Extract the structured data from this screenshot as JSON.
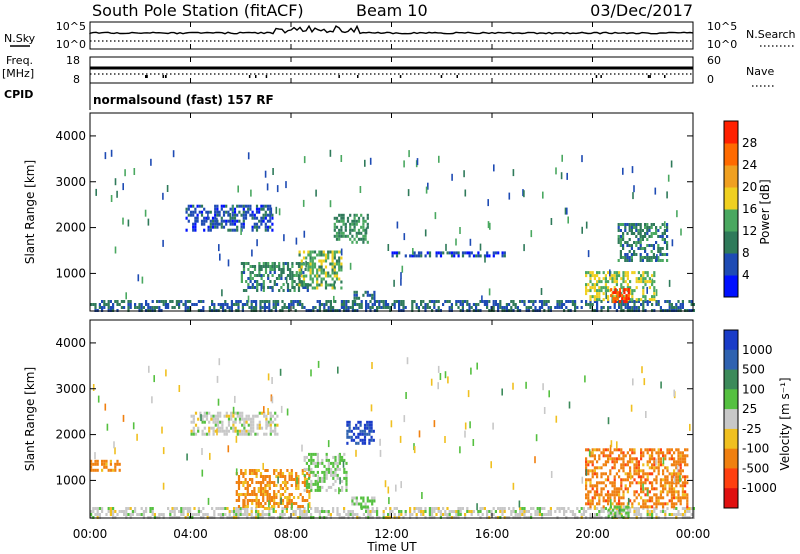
{
  "header": {
    "station": "South Pole Station (fitACF)",
    "beam": "Beam 10",
    "date": "03/Dec/2017"
  },
  "top_panels": {
    "nsky_label": "N.Sky",
    "nsearch_label": "N.Search",
    "freq_label": "Freq.",
    "freq_unit": "[MHz]",
    "nave_label": "Nave",
    "cpid_label": "CPID",
    "cpid_value": "normalsound (fast) 157 RF",
    "noise_ticks": [
      "10^5",
      "10^0"
    ],
    "freq_ticks": [
      "18",
      "8"
    ],
    "nave_ticks": [
      "60",
      "0"
    ]
  },
  "axes": {
    "ylabel": "Slant Range [km]",
    "xlabel": "Time UT",
    "y_ticks": [
      "1000",
      "2000",
      "3000",
      "4000"
    ],
    "x_ticks": [
      "00:00",
      "04:00",
      "08:00",
      "12:00",
      "16:00",
      "20:00",
      "00:00"
    ]
  },
  "colorbars": {
    "power": {
      "label": "Power [dB]",
      "ticks": [
        "4",
        "8",
        "12",
        "16",
        "20",
        "24",
        "28"
      ],
      "colors": [
        "#0010ff",
        "#1e4bb4",
        "#2f7a5a",
        "#4aa860",
        "#f0d020",
        "#f0a020",
        "#ff6a00",
        "#ff2000"
      ]
    },
    "velocity": {
      "label": "Velocity [m s⁻¹]",
      "ticks": [
        "1000",
        "500",
        "100",
        "25",
        "-25",
        "-100",
        "-500",
        "-1000"
      ],
      "colors": [
        "#1a3cc8",
        "#2f62b0",
        "#3c8a5a",
        "#55c040",
        "#c8c8c8",
        "#f0c020",
        "#f08010",
        "#ff4010",
        "#e01010"
      ]
    }
  },
  "chart_data": [
    {
      "type": "heatmap",
      "title": "Power",
      "xlabel": "Time UT",
      "ylabel": "Slant Range [km]",
      "xlim": [
        0,
        24
      ],
      "ylim": [
        180,
        4500
      ],
      "colorbar": "Power [dB]",
      "clim": [
        0,
        32
      ],
      "regions": [
        {
          "t0": 0.0,
          "t1": 24.0,
          "r0": 180,
          "r1": 420,
          "value": 8
        },
        {
          "t0": 3.8,
          "t1": 7.3,
          "r0": 1950,
          "r1": 2500,
          "value": 6
        },
        {
          "t0": 6.0,
          "t1": 8.7,
          "r0": 650,
          "r1": 1250,
          "value": 10
        },
        {
          "t0": 8.3,
          "t1": 10.0,
          "r0": 700,
          "r1": 1500,
          "value": 14
        },
        {
          "t0": 9.7,
          "t1": 11.1,
          "r0": 1650,
          "r1": 2300,
          "value": 12
        },
        {
          "t0": 10.4,
          "t1": 11.3,
          "r0": 450,
          "r1": 620,
          "value": 8
        },
        {
          "t0": 12.0,
          "t1": 16.5,
          "r0": 1380,
          "r1": 1480,
          "value": 5
        },
        {
          "t0": 19.7,
          "t1": 22.5,
          "r0": 450,
          "r1": 1050,
          "value": 16
        },
        {
          "t0": 20.7,
          "t1": 21.5,
          "r0": 380,
          "r1": 680,
          "value": 28
        },
        {
          "t0": 21.0,
          "t1": 23.0,
          "r0": 1300,
          "r1": 2100,
          "value": 10
        }
      ]
    },
    {
      "type": "heatmap",
      "title": "Velocity",
      "xlabel": "Time UT",
      "ylabel": "Slant Range [km]",
      "xlim": [
        0,
        24
      ],
      "ylim": [
        180,
        4500
      ],
      "colorbar": "Velocity [m s⁻¹]",
      "clim": [
        -1000,
        1000
      ],
      "regions": [
        {
          "t0": 0.0,
          "t1": 24.0,
          "r0": 180,
          "r1": 420,
          "value": 0
        },
        {
          "t0": 0.0,
          "t1": 1.2,
          "r0": 1200,
          "r1": 1450,
          "value": -400
        },
        {
          "t0": 5.8,
          "t1": 8.7,
          "r0": 450,
          "r1": 1250,
          "value": -400
        },
        {
          "t0": 8.5,
          "t1": 10.2,
          "r0": 800,
          "r1": 1600,
          "value": 150
        },
        {
          "t0": 10.2,
          "t1": 11.3,
          "r0": 1800,
          "r1": 2300,
          "value": 800
        },
        {
          "t0": 10.4,
          "t1": 11.3,
          "r0": 450,
          "r1": 650,
          "value": 150
        },
        {
          "t0": 4.0,
          "t1": 7.5,
          "r0": 2000,
          "r1": 2500,
          "value": 0
        },
        {
          "t0": 19.7,
          "t1": 23.8,
          "r0": 450,
          "r1": 1700,
          "value": -450
        },
        {
          "t0": 20.6,
          "t1": 21.4,
          "r0": 200,
          "r1": 450,
          "value": 200
        }
      ]
    }
  ]
}
